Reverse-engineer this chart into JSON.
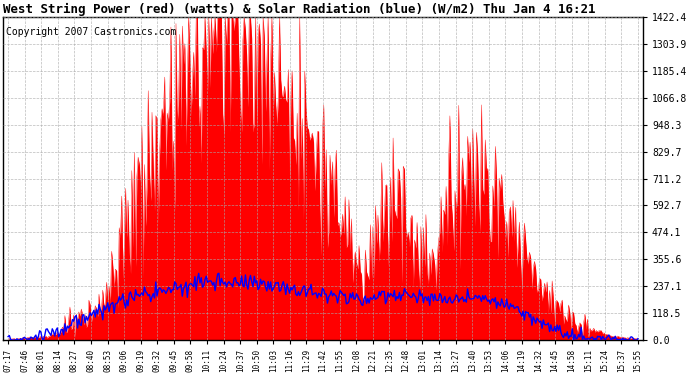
{
  "title": "West String Power (red) (watts) & Solar Radiation (blue) (W/m2) Thu Jan 4 16:21",
  "copyright": "Copyright 2007 Castronics.com",
  "yticks": [
    0.0,
    118.5,
    237.1,
    355.6,
    474.1,
    592.7,
    711.2,
    829.7,
    948.3,
    1066.8,
    1185.4,
    1303.9,
    1422.4
  ],
  "ylim": [
    0,
    1422.4
  ],
  "xtick_labels": [
    "07:17",
    "07:46",
    "08:01",
    "08:14",
    "08:27",
    "08:40",
    "08:53",
    "09:06",
    "09:19",
    "09:32",
    "09:45",
    "09:58",
    "10:11",
    "10:24",
    "10:37",
    "10:50",
    "11:03",
    "11:16",
    "11:29",
    "11:42",
    "11:55",
    "12:08",
    "12:21",
    "12:35",
    "12:48",
    "13:01",
    "13:14",
    "13:27",
    "13:40",
    "13:53",
    "14:06",
    "14:19",
    "14:32",
    "14:45",
    "14:58",
    "15:11",
    "15:24",
    "15:37",
    "15:55"
  ],
  "n_xticks": 39,
  "background_color": "#ffffff",
  "plot_bg_color": "#ffffff",
  "grid_color": "#aaaaaa",
  "red_color": "#ff0000",
  "blue_color": "#0000ff",
  "title_fontsize": 9,
  "copyright_fontsize": 7,
  "power_envelope": [
    5,
    5,
    8,
    10,
    12,
    15,
    20,
    30,
    50,
    70,
    80,
    90,
    120,
    150,
    200,
    280,
    380,
    500,
    600,
    680,
    750,
    820,
    900,
    980,
    1050,
    1100,
    1150,
    1200,
    1280,
    1350,
    1380,
    1420,
    1400,
    1380,
    1350,
    1300,
    1250,
    1200,
    1180,
    1150,
    1100,
    1050,
    980,
    900,
    820,
    730,
    650,
    580,
    500,
    430,
    360,
    300,
    420,
    480,
    550,
    600,
    580,
    520,
    460,
    400,
    350,
    300,
    580,
    650,
    700,
    720,
    740,
    760,
    720,
    680,
    620,
    560,
    500,
    440,
    380,
    320,
    260,
    200,
    160,
    130,
    100,
    80,
    60,
    50,
    40,
    30,
    20,
    15,
    10,
    8,
    5
  ],
  "solar_envelope": [
    5,
    5,
    8,
    10,
    15,
    20,
    30,
    40,
    55,
    70,
    85,
    95,
    110,
    125,
    140,
    155,
    168,
    178,
    188,
    196,
    203,
    210,
    218,
    225,
    232,
    238,
    243,
    248,
    252,
    255,
    257,
    258,
    258,
    257,
    255,
    252,
    248,
    244,
    240,
    236,
    231,
    226,
    221,
    216,
    210,
    205,
    200,
    195,
    190,
    185,
    180,
    175,
    185,
    192,
    198,
    200,
    198,
    195,
    190,
    185,
    180,
    175,
    180,
    185,
    188,
    190,
    188,
    185,
    180,
    175,
    165,
    155,
    140,
    125,
    110,
    92,
    75,
    58,
    44,
    32,
    22,
    15,
    10,
    8,
    6,
    5,
    4,
    3,
    2,
    2,
    1
  ]
}
